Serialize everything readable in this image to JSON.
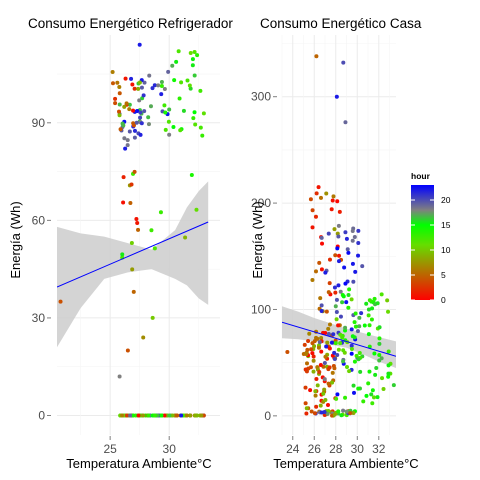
{
  "colors": {
    "trend_line": "#0000ff",
    "confidence_band": "#cccccc",
    "panel_bg": "#ffffff",
    "grid_major": "#ebebeb",
    "grid_minor": "#f5f5f5"
  },
  "colorbar": {
    "title": "hour",
    "min": 0,
    "max": 23,
    "ticks": [
      0,
      5,
      10,
      15,
      20
    ],
    "gradient_stops": [
      {
        "v": 0,
        "color": "#ff0000"
      },
      {
        "v": 6,
        "color": "#b07800"
      },
      {
        "v": 11,
        "color": "#66dd00"
      },
      {
        "v": 15,
        "color": "#00ff00"
      },
      {
        "v": 18,
        "color": "#808080"
      },
      {
        "v": 23,
        "color": "#0000ff"
      }
    ]
  },
  "chart_data": [
    {
      "type": "scatter",
      "title": "Consumo Energético Refrigerador",
      "xlabel": "Temperatura Ambiente°C",
      "ylabel": "Energía (Wh)",
      "xlim": [
        20.5,
        34.3
      ],
      "ylim": [
        -6,
        117
      ],
      "xticks": [
        25,
        30
      ],
      "yticks": [
        0,
        30,
        60,
        90
      ],
      "color_by": "hour",
      "trend": {
        "x": [
          20.5,
          33.3
        ],
        "y": [
          39.5,
          59.5
        ]
      },
      "band": {
        "x": [
          20.5,
          22.5,
          24.5,
          26.5,
          28.5,
          30.5,
          31.5,
          32.5,
          33.3
        ],
        "lower": [
          21,
          33,
          42,
          44,
          45,
          42,
          40,
          36,
          34
        ],
        "upper": [
          58,
          56,
          55,
          53,
          51,
          57,
          64,
          69,
          72
        ]
      },
      "generator": {
        "seed": 7,
        "groups": [
          {
            "n": 95,
            "x": [
              25.8,
              33.0
            ],
            "y": [
              0,
              0
            ],
            "h": [
              0,
              23
            ]
          },
          {
            "n": 34,
            "x": [
              25.8,
              28.6
            ],
            "y": [
              82,
              104
            ],
            "h": [
              16,
              23
            ]
          },
          {
            "n": 22,
            "x": [
              25.2,
              27.6
            ],
            "y": [
              88,
              106
            ],
            "h": [
              0,
              10
            ]
          },
          {
            "n": 16,
            "x": [
              27.2,
              30.0
            ],
            "y": [
              86,
              108
            ],
            "h": [
              18,
              23
            ]
          },
          {
            "n": 32,
            "x": [
              29.0,
              33.0
            ],
            "y": [
              86,
              112
            ],
            "h": [
              11,
              17
            ]
          },
          {
            "n": 12,
            "x": [
              26.0,
              33.0
            ],
            "y": [
              40,
              82
            ],
            "h": [
              6,
              16
            ]
          },
          {
            "n": 8,
            "x": [
              26.0,
              27.4
            ],
            "y": [
              55,
              80
            ],
            "h": [
              0,
              6
            ]
          }
        ],
        "extra": [
          {
            "x": 20.8,
            "y": 35,
            "h": 4
          },
          {
            "x": 26.5,
            "y": 20,
            "h": 4
          },
          {
            "x": 25.8,
            "y": 12,
            "h": 18
          },
          {
            "x": 28.6,
            "y": 30,
            "h": 10
          },
          {
            "x": 27.8,
            "y": 24,
            "h": 7
          },
          {
            "x": 27.5,
            "y": 114,
            "h": 22
          },
          {
            "x": 30.8,
            "y": 112,
            "h": 12
          },
          {
            "x": 27.0,
            "y": 38,
            "h": 5
          }
        ]
      }
    },
    {
      "type": "scatter",
      "title": "Consumo Energético Casa",
      "xlabel": "Temperatura Ambiente°C",
      "ylabel": "Energía (Wh)",
      "xlim": [
        23.0,
        33.6
      ],
      "ylim": [
        -18,
        358
      ],
      "xticks": [
        24,
        26,
        28,
        30,
        32
      ],
      "yticks": [
        0,
        100,
        200,
        300
      ],
      "color_by": "hour",
      "trend": {
        "x": [
          23.0,
          33.6
        ],
        "y": [
          88,
          56
        ]
      },
      "band": {
        "x": [
          23.0,
          24.5,
          26.0,
          27.5,
          29.0,
          30.5,
          32.0,
          33.6
        ],
        "lower": [
          73,
          72,
          70,
          67,
          64,
          58,
          51,
          45
        ],
        "upper": [
          103,
          98,
          92,
          87,
          82,
          78,
          74,
          70
        ]
      },
      "generator": {
        "seed": 13,
        "groups": [
          {
            "n": 80,
            "x": [
              25.0,
              28.0
            ],
            "y": [
              0,
              80
            ],
            "h": [
              0,
              10
            ]
          },
          {
            "n": 55,
            "x": [
              25.5,
              28.5
            ],
            "y": [
              40,
              210
            ],
            "h": [
              0,
              8
            ]
          },
          {
            "n": 60,
            "x": [
              26.5,
              30.5
            ],
            "y": [
              20,
              180
            ],
            "h": [
              18,
              23
            ]
          },
          {
            "n": 90,
            "x": [
              28.0,
              33.4
            ],
            "y": [
              10,
              120
            ],
            "h": [
              10,
              17
            ]
          },
          {
            "n": 30,
            "x": [
              26.0,
              30.0
            ],
            "y": [
              0,
              5
            ],
            "h": [
              0,
              23
            ]
          }
        ],
        "extra": [
          {
            "x": 26.2,
            "y": 338,
            "h": 5
          },
          {
            "x": 28.7,
            "y": 332,
            "h": 20
          },
          {
            "x": 28.1,
            "y": 300,
            "h": 22
          },
          {
            "x": 28.9,
            "y": 276,
            "h": 19
          },
          {
            "x": 23.5,
            "y": 60,
            "h": 4
          },
          {
            "x": 26.4,
            "y": 215,
            "h": 1
          }
        ]
      }
    }
  ]
}
